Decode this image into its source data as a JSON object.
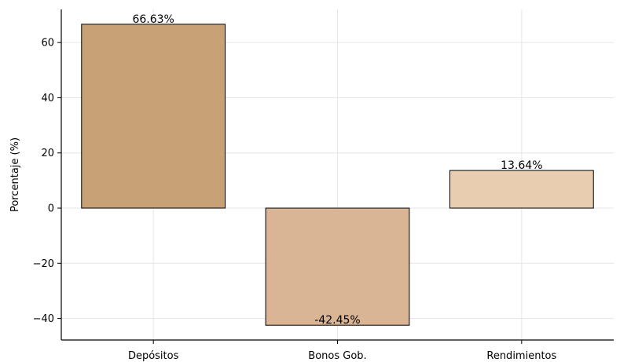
{
  "chart_data": {
    "type": "bar",
    "categories": [
      "Depósitos",
      "Bonos Gob.",
      "Rendimientos"
    ],
    "values": [
      66.63,
      -42.45,
      13.64
    ],
    "data_labels": [
      "66.63%",
      "-42.45%",
      "13.64%"
    ],
    "colors": [
      "#c8a276",
      "#d9b595",
      "#e8cdb0"
    ],
    "title": "",
    "xlabel": "",
    "ylabel": "Porcentaje (%)",
    "ylim": [
      -47.8,
      72.0
    ],
    "yticks": [
      -40,
      -20,
      0,
      20,
      40,
      60
    ],
    "ytick_labels": [
      "−40",
      "−20",
      "0",
      "20",
      "40",
      "60"
    ],
    "grid": true,
    "legend": "none"
  }
}
